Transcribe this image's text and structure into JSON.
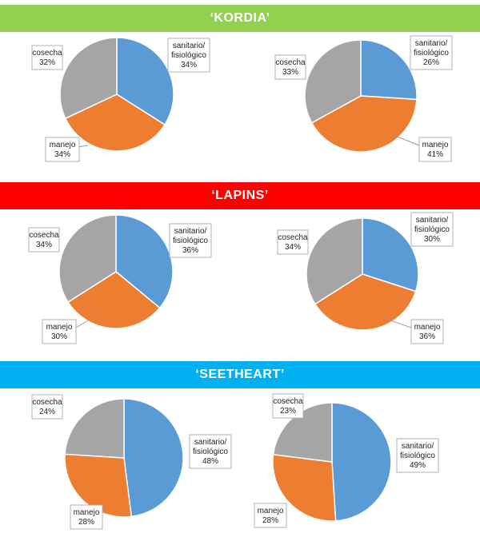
{
  "colors": {
    "sanitario": "#5B9BD5",
    "manejo": "#ED7D31",
    "cosecha": "#A5A5A5",
    "band_kordia": "#92D050",
    "band_lapins": "#FF0000",
    "band_seetheart": "#00B0F0"
  },
  "groups": [
    {
      "title": "‘KORDIA’",
      "color_key": "band_kordia"
    },
    {
      "title": "‘LAPINS’",
      "color_key": "band_lapins"
    },
    {
      "title": "‘SEETHEART’",
      "color_key": "band_seetheart"
    }
  ],
  "chart_data": [
    {
      "type": "pie",
      "group": "KORDIA",
      "panel": "left",
      "categories": [
        [
          "sanitario/",
          "fisiológico"
        ],
        [
          "manejo"
        ],
        [
          "cosecha"
        ]
      ],
      "values": [
        34,
        34,
        32
      ],
      "value_labels": [
        "34%",
        "34%",
        "32%"
      ]
    },
    {
      "type": "pie",
      "group": "KORDIA",
      "panel": "right",
      "categories": [
        [
          "sanitario/",
          "fisiológico"
        ],
        [
          "manejo"
        ],
        [
          "cosecha"
        ]
      ],
      "values": [
        26,
        41,
        33
      ],
      "value_labels": [
        "26%",
        "41%",
        "33%"
      ]
    },
    {
      "type": "pie",
      "group": "LAPINS",
      "panel": "left",
      "categories": [
        [
          "sanitario/",
          "fisiológico"
        ],
        [
          "manejo"
        ],
        [
          "cosecha"
        ]
      ],
      "values": [
        36,
        30,
        34
      ],
      "value_labels": [
        "36%",
        "30%",
        "34%"
      ]
    },
    {
      "type": "pie",
      "group": "LAPINS",
      "panel": "right",
      "categories": [
        [
          "sanitario/",
          "fisiológico"
        ],
        [
          "manejo"
        ],
        [
          "cosecha"
        ]
      ],
      "values": [
        30,
        36,
        34
      ],
      "value_labels": [
        "30%",
        "36%",
        "34%"
      ]
    },
    {
      "type": "pie",
      "group": "SEETHEART",
      "panel": "left",
      "categories": [
        [
          "sanitario/",
          "fisiológico"
        ],
        [
          "manejo"
        ],
        [
          "cosecha"
        ]
      ],
      "values": [
        48,
        28,
        24
      ],
      "value_labels": [
        "48%",
        "28%",
        "24%"
      ]
    },
    {
      "type": "pie",
      "group": "SEETHEART",
      "panel": "right",
      "categories": [
        [
          "sanitario/",
          "fisiológico"
        ],
        [
          "manejo"
        ],
        [
          "cosecha"
        ]
      ],
      "values": [
        49,
        28,
        23
      ],
      "value_labels": [
        "49%",
        "28%",
        "23%"
      ]
    }
  ]
}
